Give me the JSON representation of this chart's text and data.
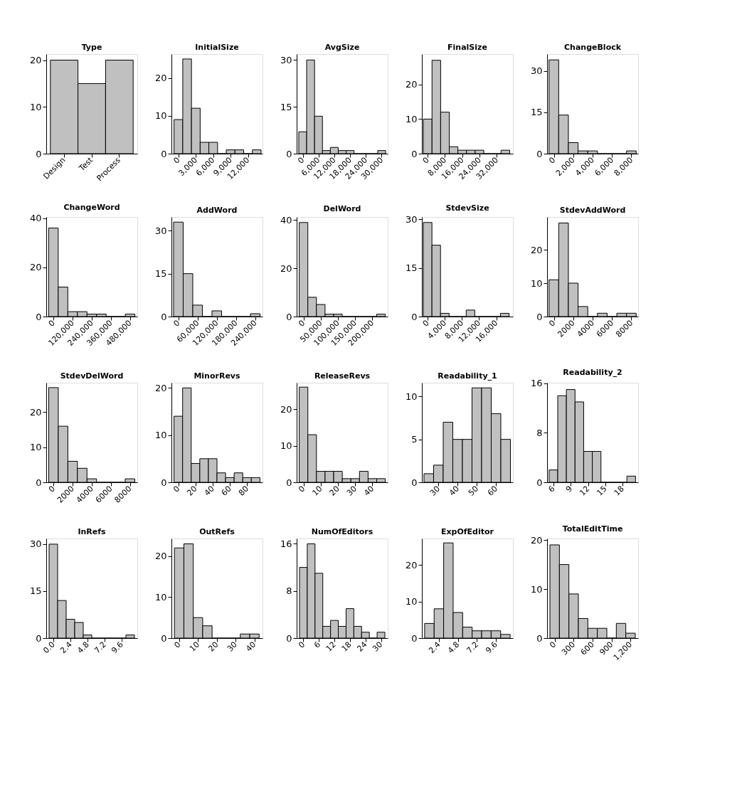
{
  "chart_data": [
    {
      "type": "bar",
      "title": "Type",
      "categories": [
        "Design",
        "Test",
        "Process"
      ],
      "values": [
        20,
        15,
        20
      ],
      "color": "#c0c0c0",
      "ylim": [
        0,
        21.3
      ],
      "yticks": [
        0,
        10,
        20
      ]
    },
    {
      "type": "histogram",
      "title": "InitialSize",
      "bins": [
        -750,
        750,
        2250,
        3750,
        5250,
        6750,
        8250,
        9750,
        11250,
        12750,
        14250
      ],
      "values": [
        9,
        25,
        12,
        3,
        3,
        0,
        1,
        1,
        0,
        1
      ],
      "color": "#c0c0c0",
      "xlim": [
        -1200,
        14500
      ],
      "xticks": [
        0,
        {
          "value": 3000,
          "label": "3,000"
        },
        {
          "value": 6000,
          "label": "6,000"
        },
        {
          "value": 9000,
          "label": "9,000"
        },
        {
          "value": 12000,
          "label": "12,000"
        }
      ],
      "ylim": [
        0,
        26.3
      ],
      "yticks": [
        0,
        10,
        20
      ]
    },
    {
      "type": "histogram",
      "title": "AvgSize",
      "bins": [
        -1500,
        1500,
        4500,
        7500,
        10500,
        13500,
        16500,
        19500,
        22500,
        25500,
        28500,
        31500
      ],
      "values": [
        7,
        30,
        12,
        1,
        2,
        1,
        1,
        0,
        0,
        0,
        1
      ],
      "color": "#c0c0c0",
      "xlim": [
        -2300,
        32300
      ],
      "xticks": [
        0,
        {
          "value": 6000,
          "label": "6,000"
        },
        {
          "value": 12000,
          "label": "12,000"
        },
        {
          "value": 18000,
          "label": "18,000"
        },
        {
          "value": 24000,
          "label": "24,000"
        },
        {
          "value": 30000,
          "label": "30,000"
        }
      ],
      "ylim": [
        0,
        31.9
      ],
      "yticks": [
        0,
        15,
        30
      ]
    },
    {
      "type": "histogram",
      "title": "FinalSize",
      "bins": [
        -2000,
        2000,
        6000,
        10000,
        14000,
        18000,
        22000,
        26000,
        30000,
        34000,
        38000
      ],
      "values": [
        10,
        27,
        12,
        2,
        1,
        1,
        1,
        0,
        0,
        1
      ],
      "color": "#c0c0c0",
      "xlim": [
        -2700,
        39500
      ],
      "xticks": [
        0,
        {
          "value": 8000,
          "label": "8,000"
        },
        {
          "value": 16000,
          "label": "16,000"
        },
        {
          "value": 24000,
          "label": "24,000"
        },
        {
          "value": 32000,
          "label": "32,000"
        }
      ],
      "ylim": [
        0,
        28.8
      ],
      "yticks": [
        0,
        10,
        20
      ]
    },
    {
      "type": "histogram",
      "title": "ChangeBlock",
      "bins": [
        -500,
        500,
        1500,
        2500,
        3500,
        4500,
        5500,
        6500,
        7500,
        8500
      ],
      "values": [
        34,
        14,
        4,
        1,
        1,
        0,
        0,
        0,
        1
      ],
      "color": "#c0c0c0",
      "xlim": [
        -700,
        8700
      ],
      "xticks": [
        0,
        {
          "value": 2000,
          "label": "2,000"
        },
        {
          "value": 4000,
          "label": "4,000"
        },
        {
          "value": 6000,
          "label": "6,000"
        },
        {
          "value": 8000,
          "label": "8,000"
        }
      ],
      "ylim": [
        0,
        36.1
      ],
      "yticks": [
        0,
        15,
        30
      ]
    },
    {
      "type": "histogram",
      "title": "ChangeWord",
      "bins": [
        -30000,
        30000,
        90000,
        150000,
        210000,
        270000,
        330000,
        390000,
        450000,
        510000
      ],
      "values": [
        36,
        12,
        2,
        2,
        1,
        1,
        0,
        0,
        1
      ],
      "color": "#c0c0c0",
      "xlim": [
        -45000,
        525000
      ],
      "xticks": [
        0,
        {
          "value": 120000,
          "label": "120,000"
        },
        {
          "value": 240000,
          "label": "240,000"
        },
        {
          "value": 360000,
          "label": "360,000"
        },
        {
          "value": 480000,
          "label": "480,000"
        }
      ],
      "ylim": [
        0,
        40.5
      ],
      "yticks": [
        0,
        20,
        40
      ]
    },
    {
      "type": "histogram",
      "title": "AddWord",
      "bins": [
        -15000,
        15000,
        45000,
        75000,
        105000,
        135000,
        165000,
        195000,
        225000,
        255000
      ],
      "values": [
        33,
        15,
        4,
        0,
        2,
        0,
        0,
        0,
        1
      ],
      "color": "#c0c0c0",
      "xlim": [
        -21600,
        262800
      ],
      "xticks": [
        0,
        {
          "value": 60000,
          "label": "60,000"
        },
        {
          "value": 120000,
          "label": "120,000"
        },
        {
          "value": 180000,
          "label": "180,000"
        },
        {
          "value": 240000,
          "label": "240,000"
        }
      ],
      "ylim": [
        0,
        34.8
      ],
      "yticks": [
        0,
        15,
        30
      ]
    },
    {
      "type": "histogram",
      "title": "DelWord",
      "bins": [
        -12500,
        12500,
        37500,
        62500,
        87500,
        112500,
        137500,
        162500,
        187500,
        212500,
        237500
      ],
      "values": [
        39,
        8,
        5,
        1,
        1,
        0,
        0,
        0,
        0,
        1
      ],
      "color": "#c0c0c0",
      "xlim": [
        -20000,
        244700
      ],
      "xticks": [
        0,
        {
          "value": 50000,
          "label": "50,000"
        },
        {
          "value": 100000,
          "label": "100,000"
        },
        {
          "value": 150000,
          "label": "150,000"
        },
        {
          "value": 200000,
          "label": "200,000"
        }
      ],
      "ylim": [
        0,
        41.3
      ],
      "yticks": [
        0,
        20,
        40
      ]
    },
    {
      "type": "histogram",
      "title": "StdevSize",
      "bins": [
        -1000,
        1000,
        3000,
        5000,
        7000,
        9000,
        11000,
        13000,
        15000,
        17000,
        19000
      ],
      "values": [
        29,
        22,
        1,
        0,
        0,
        2,
        0,
        0,
        0,
        1
      ],
      "color": "#c0c0c0",
      "xlim": [
        -1350,
        19900
      ],
      "xticks": [
        0,
        {
          "value": 4000,
          "label": "4,000"
        },
        {
          "value": 8000,
          "label": "8,000"
        },
        {
          "value": 12000,
          "label": "12,000"
        },
        {
          "value": 16000,
          "label": "16,000"
        }
      ],
      "ylim": [
        0,
        30.7
      ],
      "yticks": [
        0,
        15,
        30
      ]
    },
    {
      "type": "histogram",
      "title": "StdevAddWord",
      "bins": [
        -500,
        500,
        1500,
        2500,
        3500,
        4500,
        5500,
        6500,
        7500,
        8500
      ],
      "values": [
        11,
        28,
        10,
        3,
        0,
        1,
        0,
        1,
        1
      ],
      "color": "#c0c0c0",
      "xlim": [
        -700,
        8700
      ],
      "xticks": [
        0,
        2000,
        4000,
        6000,
        8000
      ],
      "ylim": [
        0,
        29.8
      ],
      "yticks": [
        0,
        10,
        20
      ]
    },
    {
      "type": "histogram",
      "title": "StdevDelWord",
      "bins": [
        -500,
        500,
        1500,
        2500,
        3500,
        4500,
        5500,
        6500,
        7500,
        8500
      ],
      "values": [
        27,
        16,
        6,
        4,
        1,
        0,
        0,
        0,
        1
      ],
      "color": "#c0c0c0",
      "xlim": [
        -760,
        8760
      ],
      "xticks": [
        0,
        2000,
        4000,
        6000,
        8000
      ],
      "ylim": [
        0,
        28.4
      ],
      "yticks": [
        0,
        10,
        20
      ]
    },
    {
      "type": "histogram",
      "title": "MinorRevs",
      "bins": [
        -5,
        5,
        15,
        25,
        35,
        45,
        55,
        65,
        75,
        85,
        95
      ],
      "values": [
        14,
        20,
        4,
        5,
        5,
        2,
        1,
        2,
        1,
        1
      ],
      "color": "#c0c0c0",
      "xlim": [
        -8,
        98
      ],
      "xticks": [
        0,
        20,
        40,
        60,
        80
      ],
      "ylim": [
        0,
        21.1
      ],
      "yticks": [
        0,
        10,
        20
      ]
    },
    {
      "type": "histogram",
      "title": "ReleaseRevs",
      "bins": [
        -2.5,
        2.5,
        7.5,
        12.5,
        17.5,
        22.5,
        27.5,
        32.5,
        37.5,
        42.5,
        47.5
      ],
      "values": [
        26,
        13,
        3,
        3,
        3,
        1,
        1,
        3,
        1,
        1
      ],
      "color": "#c0c0c0",
      "xlim": [
        -4,
        48.9
      ],
      "xticks": [
        0,
        10,
        20,
        30,
        40
      ],
      "ylim": [
        0,
        27.2
      ],
      "yticks": [
        0,
        10,
        20
      ]
    },
    {
      "type": "histogram",
      "title": "Readability_1",
      "bins": [
        22.5,
        27.5,
        32.5,
        37.5,
        42.5,
        47.5,
        52.5,
        57.5,
        62.5,
        67.5
      ],
      "values": [
        1,
        2,
        7,
        5,
        5,
        11,
        11,
        8,
        5
      ],
      "color": "#c0c0c0",
      "xlim": [
        21.4,
        68.8
      ],
      "xticks": [
        30,
        40,
        50,
        60
      ],
      "ylim": [
        0,
        11.6
      ],
      "yticks": [
        0,
        5,
        10
      ]
    },
    {
      "type": "histogram",
      "title": "Readability_2",
      "bins": [
        5.25,
        6.75,
        8.25,
        9.75,
        11.25,
        12.75,
        14.25,
        15.75,
        17.25,
        18.75,
        20.25
      ],
      "values": [
        2,
        14,
        15,
        13,
        5,
        5,
        0,
        0,
        0,
        1
      ],
      "color": "#c0c0c0",
      "xlim": [
        4.9,
        20.7
      ],
      "xticks": [
        6,
        9,
        12,
        15,
        18
      ],
      "ylim": [
        0,
        16.1
      ],
      "yticks": [
        0,
        8,
        16
      ]
    },
    {
      "type": "histogram",
      "title": "InRefs",
      "bins": [
        -0.6,
        0.6,
        1.8,
        3.0,
        4.2,
        5.4,
        6.6,
        7.8,
        9.0,
        10.2,
        11.4
      ],
      "values": [
        30,
        12,
        6,
        5,
        1,
        0,
        0,
        0,
        0,
        1
      ],
      "color": "#c0c0c0",
      "xlim": [
        -1.0,
        11.8
      ],
      "xticks": [
        {
          "value": 0,
          "label": "0.0"
        },
        2.4,
        4.8,
        7.2,
        9.6
      ],
      "ylim": [
        0,
        31.8
      ],
      "yticks": [
        0,
        15,
        30
      ]
    },
    {
      "type": "histogram",
      "title": "OutRefs",
      "bins": [
        -2.5,
        2.5,
        7.5,
        12.5,
        17.5,
        22.5,
        27.5,
        32.5,
        37.5,
        42.5
      ],
      "values": [
        22,
        23,
        5,
        3,
        0,
        0,
        0,
        1,
        1
      ],
      "color": "#c0c0c0",
      "xlim": [
        -4.1,
        44.3
      ],
      "xticks": [
        0,
        10,
        20,
        30,
        40
      ],
      "ylim": [
        0,
        24.3
      ],
      "yticks": [
        0,
        10,
        20
      ]
    },
    {
      "type": "histogram",
      "title": "NumOfEditors",
      "bins": [
        -1.5,
        1.5,
        4.5,
        7.5,
        10.5,
        13.5,
        16.5,
        19.5,
        22.5,
        25.5,
        28.5,
        31.5
      ],
      "values": [
        12,
        16,
        11,
        2,
        3,
        2,
        5,
        2,
        1,
        0,
        1
      ],
      "color": "#c0c0c0",
      "xlim": [
        -2.6,
        32.6
      ],
      "xticks": [
        0,
        6,
        12,
        18,
        24,
        30
      ],
      "ylim": [
        0,
        16.9
      ],
      "yticks": [
        0,
        8,
        16
      ]
    },
    {
      "type": "histogram",
      "title": "ExpOfEditor",
      "bins": [
        0.6,
        1.8,
        3.0,
        4.2,
        5.4,
        6.6,
        7.8,
        9.0,
        10.2,
        11.4
      ],
      "values": [
        4,
        8,
        26,
        7,
        3,
        2,
        2,
        2,
        1
      ],
      "color": "#c0c0c0",
      "xlim": [
        0.25,
        11.75
      ],
      "xticks": [
        2.4,
        4.8,
        7.2,
        9.6
      ],
      "ylim": [
        0,
        27.2
      ],
      "yticks": [
        0,
        10,
        20
      ]
    },
    {
      "type": "histogram",
      "title": "TotalEditTime",
      "bins": [
        -75,
        75,
        225,
        375,
        525,
        675,
        825,
        975,
        1125,
        1275
      ],
      "values": [
        19,
        15,
        9,
        4,
        2,
        2,
        0,
        3,
        1
      ],
      "color": "#c0c0c0",
      "xlim": [
        -120,
        1320
      ],
      "xticks": [
        0,
        300,
        600,
        900,
        {
          "value": 1200,
          "label": "1,200"
        }
      ],
      "ylim": [
        0,
        20.3
      ],
      "yticks": [
        0,
        10,
        20
      ]
    }
  ]
}
